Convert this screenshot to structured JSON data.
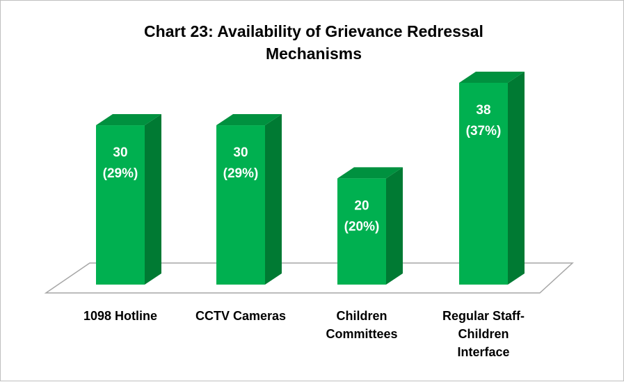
{
  "chart_data": {
    "type": "bar3d",
    "title": "Chart 23: Availability of Grievance Redressal Mechanisms",
    "categories": [
      "1098 Hotline",
      "CCTV Cameras",
      "Children Committees",
      "Regular Staff-Children Interface"
    ],
    "values": [
      30,
      30,
      20,
      38
    ],
    "percent": [
      29,
      29,
      20,
      37
    ],
    "percent_labels": [
      "(29%)",
      "(29%)",
      "(20%)",
      "(37%)"
    ],
    "color": "#00b050"
  }
}
